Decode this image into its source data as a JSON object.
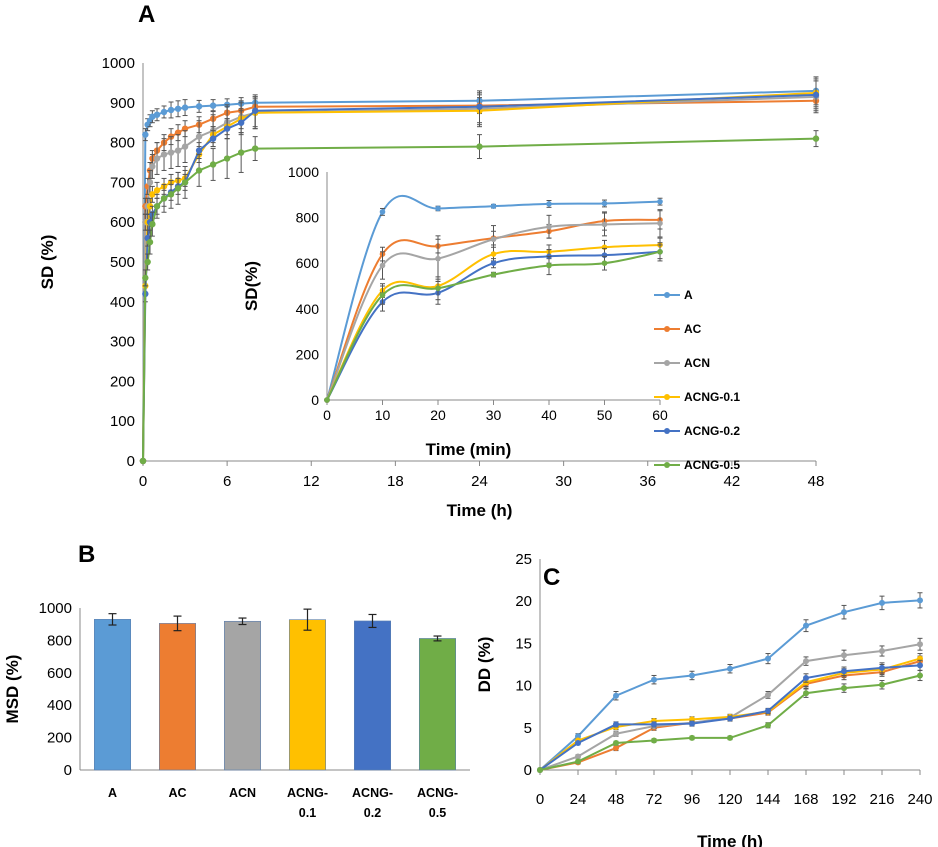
{
  "colors": {
    "A": "#5B9BD5",
    "AC": "#ED7D31",
    "ACN": "#A5A5A5",
    "ACNG-0.1": "#FFC000",
    "ACNG-0.2": "#4472C4",
    "ACNG-0.5": "#70AD47"
  },
  "chart_data": [
    {
      "panel": "A",
      "type": "line",
      "xlabel": "Time (h)",
      "ylabel": "SD (%)",
      "xlim": [
        0,
        48
      ],
      "ylim": [
        0,
        1000
      ],
      "x_ticks": [
        "0",
        "6",
        "12",
        "18",
        "24",
        "30",
        "36",
        "42",
        "48"
      ],
      "y_ticks": [
        "0",
        "100",
        "200",
        "300",
        "400",
        "500",
        "600",
        "700",
        "800",
        "900",
        "1000"
      ],
      "grid": false,
      "x": [
        0,
        0.167,
        0.333,
        0.5,
        0.667,
        1,
        1.5,
        2,
        2.5,
        3,
        4,
        5,
        6,
        7,
        8,
        24,
        48
      ],
      "series": [
        {
          "name": "A",
          "values": [
            0,
            820,
            845,
            855,
            865,
            870,
            877,
            882,
            885,
            888,
            891,
            893,
            895,
            898,
            900,
            905,
            930
          ],
          "err": [
            0,
            15,
            15,
            15,
            15,
            15,
            15,
            20,
            20,
            20,
            15,
            15,
            15,
            15,
            15,
            20,
            35
          ]
        },
        {
          "name": "AC",
          "values": [
            0,
            640,
            690,
            730,
            760,
            780,
            800,
            815,
            825,
            835,
            845,
            860,
            875,
            880,
            890,
            893,
            905
          ],
          "err": [
            0,
            20,
            20,
            20,
            20,
            20,
            20,
            20,
            20,
            20,
            20,
            20,
            20,
            20,
            20,
            20,
            15
          ]
        },
        {
          "name": "ACN",
          "values": [
            0,
            600,
            640,
            700,
            740,
            760,
            770,
            775,
            780,
            790,
            815,
            830,
            850,
            865,
            875,
            885,
            915
          ],
          "err": [
            0,
            20,
            20,
            30,
            30,
            40,
            40,
            40,
            40,
            40,
            40,
            40,
            40,
            40,
            40,
            40,
            40
          ]
        },
        {
          "name": "ACNG-0.1",
          "values": [
            0,
            440,
            600,
            640,
            670,
            680,
            690,
            700,
            705,
            710,
            770,
            820,
            840,
            860,
            875,
            880,
            925
          ],
          "err": [
            0,
            20,
            20,
            20,
            20,
            20,
            20,
            20,
            20,
            20,
            20,
            20,
            20,
            25,
            40,
            40,
            40
          ]
        },
        {
          "name": "ACNG-0.2",
          "values": [
            0,
            420,
            560,
            600,
            620,
            640,
            660,
            675,
            690,
            700,
            780,
            810,
            835,
            850,
            880,
            890,
            920
          ],
          "err": [
            0,
            20,
            20,
            20,
            20,
            20,
            20,
            20,
            20,
            20,
            20,
            20,
            25,
            30,
            40,
            40,
            40
          ]
        },
        {
          "name": "ACNG-0.5",
          "values": [
            0,
            460,
            500,
            550,
            595,
            640,
            660,
            670,
            685,
            700,
            730,
            745,
            760,
            775,
            785,
            790,
            810
          ],
          "err": [
            0,
            20,
            20,
            30,
            30,
            30,
            35,
            35,
            40,
            40,
            40,
            40,
            50,
            50,
            30,
            30,
            20
          ]
        }
      ]
    },
    {
      "panel": "A-inset",
      "type": "line",
      "xlabel": "Time (min)",
      "ylabel": "SD(%)",
      "xlim": [
        0,
        60
      ],
      "ylim": [
        0,
        1000
      ],
      "x_ticks": [
        "0",
        "10",
        "20",
        "30",
        "40",
        "50",
        "60"
      ],
      "y_ticks": [
        "0",
        "200",
        "400",
        "600",
        "800",
        "1000"
      ],
      "legend_position": "right",
      "grid": false,
      "x": [
        0,
        10,
        20,
        30,
        40,
        50,
        60
      ],
      "series": [
        {
          "name": "A",
          "values": [
            0,
            825,
            840,
            850,
            860,
            862,
            870
          ],
          "err": [
            0,
            15,
            10,
            8,
            15,
            15,
            15
          ]
        },
        {
          "name": "AC",
          "values": [
            0,
            640,
            675,
            710,
            740,
            785,
            790
          ],
          "err": [
            0,
            30,
            30,
            30,
            30,
            40,
            40
          ]
        },
        {
          "name": "ACN",
          "values": [
            0,
            590,
            620,
            705,
            760,
            770,
            775
          ],
          "err": [
            0,
            60,
            100,
            60,
            50,
            50,
            60
          ]
        },
        {
          "name": "ACNG-0.1",
          "values": [
            0,
            480,
            500,
            640,
            650,
            670,
            680
          ],
          "err": [
            0,
            30,
            30,
            30,
            30,
            30,
            30
          ]
        },
        {
          "name": "ACNG-0.2",
          "values": [
            0,
            430,
            470,
            600,
            630,
            635,
            650
          ],
          "err": [
            0,
            40,
            50,
            20,
            30,
            30,
            40
          ]
        },
        {
          "name": "ACNG-0.5",
          "values": [
            0,
            460,
            490,
            550,
            590,
            600,
            650
          ],
          "err": [
            0,
            40,
            50,
            10,
            40,
            30,
            30
          ]
        }
      ]
    },
    {
      "panel": "B",
      "type": "bar",
      "ylabel": "MSD (%)",
      "ylim": [
        0,
        1000
      ],
      "y_ticks": [
        "0",
        "200",
        "400",
        "600",
        "800",
        "1000"
      ],
      "categories": [
        "A",
        "AC",
        "ACN",
        "ACNG-\n0.1",
        "ACNG-\n0.2",
        "ACNG-\n0.5"
      ],
      "series_keys": [
        "A",
        "AC",
        "ACN",
        "ACNG-0.1",
        "ACNG-0.2",
        "ACNG-0.5"
      ],
      "values": [
        930,
        905,
        918,
        928,
        920,
        812
      ],
      "err": [
        35,
        45,
        20,
        65,
        40,
        15
      ],
      "grid": false
    },
    {
      "panel": "C",
      "type": "line",
      "xlabel": "Time (h)",
      "ylabel": "DD (%)",
      "xlim": [
        0,
        240
      ],
      "ylim": [
        0,
        25
      ],
      "x_ticks": [
        "0",
        "24",
        "48",
        "72",
        "96",
        "120",
        "144",
        "168",
        "192",
        "216",
        "240"
      ],
      "y_ticks": [
        "0",
        "5",
        "10",
        "15",
        "20",
        "25"
      ],
      "grid": false,
      "x": [
        0,
        24,
        48,
        72,
        96,
        120,
        144,
        168,
        192,
        216,
        240
      ],
      "series": [
        {
          "name": "A",
          "values": [
            0,
            4,
            8.8,
            10.7,
            11.2,
            12,
            13.2,
            17.1,
            18.7,
            19.8,
            20.1
          ],
          "err": [
            0,
            0.3,
            0.5,
            0.5,
            0.5,
            0.5,
            0.6,
            0.7,
            0.8,
            0.8,
            0.9
          ]
        },
        {
          "name": "AC",
          "values": [
            0,
            0.9,
            2.6,
            5,
            5.6,
            6.1,
            6.8,
            10.2,
            11.2,
            11.6,
            12.9
          ],
          "err": [
            0,
            0.2,
            0.3,
            0.3,
            0.3,
            0.3,
            0.3,
            0.5,
            0.5,
            0.5,
            0.6
          ]
        },
        {
          "name": "ACN",
          "values": [
            0,
            1.6,
            4.3,
            5.2,
            5.6,
            6.2,
            8.9,
            12.9,
            13.6,
            14.1,
            14.9
          ],
          "err": [
            0,
            0.2,
            0.3,
            0.3,
            0.3,
            0.3,
            0.4,
            0.5,
            0.6,
            0.6,
            0.7
          ]
        },
        {
          "name": "ACNG-0.1",
          "values": [
            0,
            3.5,
            5.1,
            5.8,
            6,
            6.3,
            6.9,
            10.4,
            11.5,
            11.9,
            13.2
          ],
          "err": [
            0,
            0.2,
            0.3,
            0.3,
            0.3,
            0.3,
            0.3,
            0.5,
            0.5,
            0.6,
            0.6
          ]
        },
        {
          "name": "ACNG-0.2",
          "values": [
            0,
            3.2,
            5.4,
            5.4,
            5.5,
            6.1,
            7,
            10.9,
            11.7,
            12.1,
            12.4
          ],
          "err": [
            0,
            0.2,
            0.3,
            0.3,
            0.3,
            0.3,
            0.3,
            0.5,
            0.5,
            0.6,
            0.6
          ]
        },
        {
          "name": "ACNG-0.5",
          "values": [
            0,
            1,
            3.2,
            3.5,
            3.8,
            3.8,
            5.3,
            9.1,
            9.7,
            10.1,
            11.2
          ],
          "err": [
            0,
            0.2,
            0.2,
            0.2,
            0.2,
            0.2,
            0.3,
            0.5,
            0.5,
            0.5,
            0.6
          ]
        }
      ]
    }
  ],
  "panel_letters": {
    "a": "A",
    "b": "B",
    "c": "C"
  }
}
